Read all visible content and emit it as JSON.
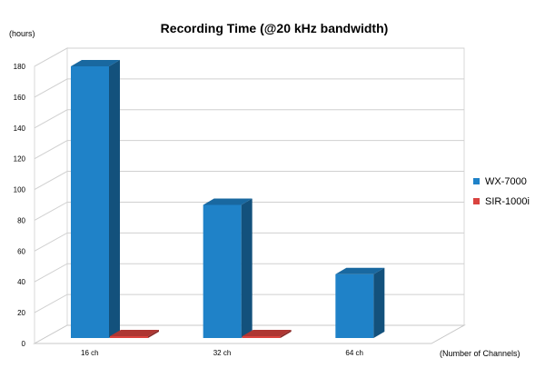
{
  "chart_data": {
    "type": "bar",
    "title": "Recording Time (@20 kHz bandwidth)",
    "ylabel": "(hours)",
    "xlabel": "(Number of Channels)",
    "categories": [
      "16 ch",
      "32 ch",
      "64 ch"
    ],
    "ylim": [
      0,
      180
    ],
    "yticks": [
      0,
      20,
      40,
      60,
      80,
      100,
      120,
      140,
      160,
      180
    ],
    "grid": true,
    "legend_position": "right",
    "style": "3d-column",
    "series": [
      {
        "name": "WX-7000",
        "values": [
          180,
          90,
          45
        ],
        "color": "#1f82c8"
      },
      {
        "name": "SIR-1000i",
        "values": [
          1,
          1,
          0
        ],
        "color": "#d9433f"
      }
    ]
  }
}
